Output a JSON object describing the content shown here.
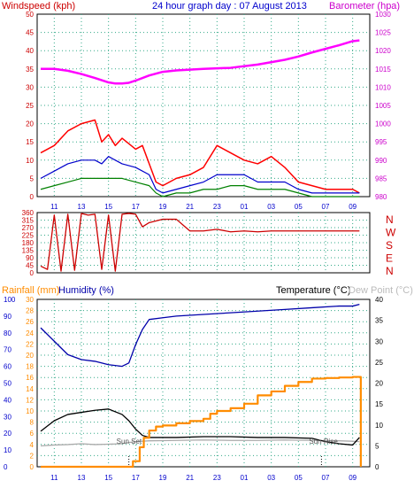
{
  "header": {
    "windspeed_label": "Windspeed (kph)",
    "title": "24 hour graph day : 07 August 2013",
    "barometer_label": "Barometer (hpa)"
  },
  "mid_header": {
    "rainfall_label": "Rainfall (mm)",
    "humidity_label": "Humidity (%)",
    "temperature_label": "Temperature (°C)",
    "dewpoint_label": "Dew Point (°C)"
  },
  "colors": {
    "wind_gust": "#ff0000",
    "wind_avg": "#0000cc",
    "wind_low": "#008000",
    "barometer": "#ff00ff",
    "direction": "#cc0000",
    "humidity": "#0000aa",
    "temperature": "#000000",
    "dewpoint": "#aaaaaa",
    "rainfall": "#ff8c00",
    "grid": "#33aa88",
    "left_axis_red": "#cc0000",
    "left_axis_blue": "#0000cc",
    "right_axis_magenta": "#cc00cc"
  },
  "chart_data": [
    {
      "type": "line",
      "title": "24 hour graph day : 07 August 2013",
      "x_ticks": [
        "11",
        "13",
        "15",
        "17",
        "19",
        "21",
        "23",
        "01",
        "03",
        "05",
        "07",
        "09"
      ],
      "left_axis": {
        "label": "Windspeed (kph)",
        "ylim": [
          0,
          50
        ],
        "ticks": [
          "0",
          "5",
          "10",
          "15",
          "20",
          "25",
          "30",
          "35",
          "40",
          "45",
          "50"
        ]
      },
      "right_axis": {
        "label": "Barometer (hpa)",
        "ylim": [
          980,
          1030
        ],
        "ticks": [
          "980",
          "985",
          "990",
          "995",
          "1000",
          "1005",
          "1010",
          "1015",
          "1020",
          "1025",
          "1030"
        ]
      },
      "series": [
        {
          "name": "Barometer",
          "axis": "right",
          "hours": [
            0,
            1,
            2,
            3,
            4,
            5,
            5.5,
            6,
            6.5,
            7,
            8,
            9,
            10,
            12,
            14,
            16,
            18,
            19,
            20,
            21,
            22,
            23,
            23.5
          ],
          "values": [
            1015,
            1015,
            1014.5,
            1013.6,
            1012.5,
            1011.3,
            1011.0,
            1011.0,
            1011.2,
            1011.8,
            1013.2,
            1014.2,
            1014.6,
            1015,
            1015.3,
            1016.2,
            1017.5,
            1018.4,
            1019.5,
            1020.5,
            1021.5,
            1022.6,
            1022.8
          ]
        },
        {
          "name": "Wind gust",
          "axis": "left",
          "hours": [
            0,
            1,
            2,
            3,
            4,
            4.5,
            5,
            5.5,
            6,
            7,
            7.5,
            8,
            8.5,
            9,
            10,
            11,
            12,
            13,
            14,
            15,
            16,
            17,
            18,
            19,
            20,
            21,
            22,
            23,
            23.5
          ],
          "values": [
            12,
            14,
            18,
            20,
            21,
            15,
            17,
            14,
            16,
            13,
            14,
            9,
            4,
            3,
            5,
            6,
            8,
            14,
            12,
            10,
            9,
            11,
            8,
            4,
            3,
            2,
            2,
            2,
            1
          ]
        },
        {
          "name": "Wind average",
          "axis": "left",
          "hours": [
            0,
            1,
            2,
            3,
            4,
            4.5,
            5,
            6,
            7,
            8,
            8.5,
            9,
            10,
            11,
            12,
            13,
            14,
            15,
            16,
            17,
            18,
            19,
            20,
            21,
            22,
            23,
            23.5
          ],
          "values": [
            5,
            7,
            9,
            10,
            10,
            9,
            11,
            9,
            8,
            6,
            2,
            1,
            2,
            3,
            4,
            6,
            6,
            6,
            4,
            4,
            4,
            2,
            1,
            1,
            1,
            1,
            1
          ]
        },
        {
          "name": "Wind low",
          "axis": "left",
          "hours": [
            0,
            1,
            2,
            3,
            4,
            5,
            6,
            7,
            8,
            8.5,
            9,
            10,
            11,
            12,
            13,
            14,
            15,
            16,
            17,
            18,
            19,
            20,
            21,
            22,
            23,
            23.5
          ],
          "values": [
            2,
            3,
            4,
            5,
            5,
            5,
            5,
            4,
            3,
            1,
            0,
            1,
            1,
            2,
            2,
            3,
            3,
            2,
            2,
            2,
            1,
            0,
            0,
            0,
            0,
            0
          ]
        }
      ]
    },
    {
      "type": "line",
      "title": "",
      "x_ticks": [],
      "left_axis": {
        "ylim": [
          0,
          360
        ],
        "ticks": [
          "0",
          "45",
          "90",
          "135",
          "180",
          "225",
          "270",
          "315",
          "360"
        ]
      },
      "right_axis": {
        "labels": [
          "N",
          "W",
          "S",
          "E",
          "N"
        ]
      },
      "series": [
        {
          "name": "Wind direction",
          "hours": [
            0,
            0.5,
            1,
            1.5,
            2,
            2.5,
            3,
            3.5,
            4,
            4.5,
            5,
            5.5,
            6,
            6.5,
            7,
            7.5,
            8,
            9,
            10,
            11,
            12,
            13,
            14,
            15,
            16,
            17,
            18,
            19,
            20,
            21,
            22,
            23,
            23.5
          ],
          "values": [
            40,
            20,
            345,
            10,
            350,
            15,
            355,
            345,
            350,
            20,
            345,
            10,
            350,
            355,
            350,
            275,
            300,
            320,
            320,
            250,
            250,
            260,
            245,
            250,
            245,
            250,
            250,
            250,
            250,
            250,
            250,
            250,
            250
          ]
        }
      ]
    },
    {
      "type": "line",
      "title": "",
      "x_ticks": [
        "11",
        "13",
        "15",
        "17",
        "19",
        "21",
        "23",
        "01",
        "03",
        "05",
        "07",
        "09"
      ],
      "annotations": [
        "Sun Set",
        "Sun Rise"
      ],
      "left_axis_humidity": {
        "ylim": [
          0,
          100
        ],
        "ticks": [
          "0",
          "10",
          "20",
          "30",
          "40",
          "50",
          "60",
          "70",
          "80",
          "90",
          "100"
        ]
      },
      "left_axis_rainfall": {
        "ylim": [
          0,
          30
        ],
        "ticks": [
          "0",
          "2",
          "4",
          "6",
          "8",
          "10",
          "12",
          "14",
          "16",
          "18",
          "20",
          "22",
          "24",
          "26",
          "28",
          "30"
        ]
      },
      "right_axis": {
        "ylim": [
          0,
          40
        ],
        "ticks": [
          "0",
          "5",
          "10",
          "15",
          "20",
          "25",
          "30",
          "35",
          "40"
        ]
      },
      "series": [
        {
          "name": "Humidity",
          "axis": "humidity",
          "hours": [
            0,
            1,
            2,
            3,
            4,
            5,
            6,
            6.5,
            7,
            7.5,
            8,
            9,
            10,
            12,
            14,
            16,
            18,
            20,
            22,
            23,
            23.5
          ],
          "values": [
            83,
            75,
            67,
            64,
            63,
            61,
            60,
            62,
            73,
            82,
            88,
            89,
            90,
            91,
            92,
            93,
            94,
            95,
            96,
            96,
            97
          ]
        },
        {
          "name": "Temperature",
          "axis": "temp",
          "hours": [
            0,
            1,
            2,
            3,
            4,
            5,
            6,
            6.5,
            7,
            7.5,
            8,
            9,
            10,
            12,
            14,
            16,
            18,
            20,
            21,
            22,
            23,
            23.5
          ],
          "values": [
            8.5,
            11,
            12.5,
            13,
            13.5,
            13.8,
            12.5,
            11,
            9,
            7.5,
            7,
            7,
            7,
            7.2,
            7.2,
            7,
            7,
            6.8,
            6,
            5.5,
            5.2,
            7
          ]
        },
        {
          "name": "Dew Point",
          "axis": "temp",
          "hours": [
            0,
            1,
            2,
            3,
            4,
            5,
            6,
            6.5,
            7,
            8,
            10,
            12,
            14,
            16,
            18,
            20,
            22,
            23,
            23.5
          ],
          "values": [
            5,
            5.2,
            5.3,
            5.5,
            5.3,
            5.4,
            5.5,
            5.8,
            6,
            6.2,
            6.3,
            6.4,
            6.3,
            6.3,
            6.4,
            6.3,
            6.2,
            6.1,
            6
          ]
        },
        {
          "name": "Rainfall",
          "axis": "rain",
          "hours": [
            0,
            6.3,
            6.8,
            7.3,
            7.6,
            8,
            8.5,
            9,
            10,
            11,
            12,
            12.5,
            13,
            14,
            15,
            16,
            17,
            18,
            19,
            20,
            21,
            22,
            23,
            23.5,
            23.6
          ],
          "values": [
            0,
            0,
            1,
            3.5,
            5.2,
            6.5,
            7.2,
            7.4,
            7.8,
            8.2,
            8.6,
            9.5,
            10,
            10.5,
            11.3,
            12.8,
            13.5,
            14.5,
            15.2,
            15.8,
            15.9,
            16,
            16.1,
            16.1,
            0
          ]
        }
      ]
    }
  ]
}
